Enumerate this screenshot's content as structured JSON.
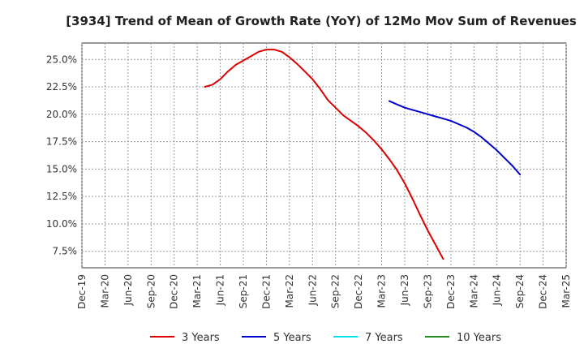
{
  "chart_data": {
    "type": "line",
    "title": "[3934]  Trend of Mean of Growth Rate (YoY) of 12Mo Mov Sum of Revenues",
    "xlabel": "",
    "ylabel": "",
    "ylim": [
      6.0,
      26.5
    ],
    "grid": true,
    "legend": "bottom",
    "x_ticks": [
      "Dec-19",
      "Mar-20",
      "Jun-20",
      "Sep-20",
      "Dec-20",
      "Mar-21",
      "Jun-21",
      "Sep-21",
      "Dec-21",
      "Mar-22",
      "Jun-22",
      "Sep-22",
      "Dec-22",
      "Mar-23",
      "Jun-23",
      "Sep-23",
      "Dec-23",
      "Mar-24",
      "Jun-24",
      "Sep-24",
      "Dec-24",
      "Mar-25"
    ],
    "y_ticks": [
      7.5,
      10.0,
      12.5,
      15.0,
      17.5,
      20.0,
      22.5,
      25.0
    ],
    "y_tick_labels": [
      "7.5%",
      "10.0%",
      "12.5%",
      "15.0%",
      "17.5%",
      "20.0%",
      "22.5%",
      "25.0%"
    ],
    "series": [
      {
        "name": "3 Years",
        "color": "#dd0000",
        "points": [
          [
            16,
            22.5
          ],
          [
            17,
            22.7
          ],
          [
            18,
            23.2
          ],
          [
            19,
            23.9
          ],
          [
            20,
            24.5
          ],
          [
            21,
            24.9
          ],
          [
            22,
            25.3
          ],
          [
            23,
            25.7
          ],
          [
            24,
            25.9
          ],
          [
            25,
            25.9
          ],
          [
            26,
            25.7
          ],
          [
            27,
            25.2
          ],
          [
            28,
            24.6
          ],
          [
            29,
            23.9
          ],
          [
            30,
            23.2
          ],
          [
            31,
            22.3
          ],
          [
            32,
            21.3
          ],
          [
            33,
            20.6
          ],
          [
            34,
            19.9
          ],
          [
            35,
            19.4
          ],
          [
            36,
            18.9
          ],
          [
            37,
            18.3
          ],
          [
            38,
            17.6
          ],
          [
            39,
            16.8
          ],
          [
            40,
            15.9
          ],
          [
            41,
            14.9
          ],
          [
            42,
            13.7
          ],
          [
            43,
            12.3
          ],
          [
            44,
            10.8
          ],
          [
            45,
            9.4
          ],
          [
            46,
            8.1
          ],
          [
            47,
            6.8
          ]
        ]
      },
      {
        "name": "5 Years",
        "color": "#0000cc",
        "points": [
          [
            40,
            21.2
          ],
          [
            41,
            20.9
          ],
          [
            42,
            20.6
          ],
          [
            43,
            20.4
          ],
          [
            44,
            20.2
          ],
          [
            45,
            20.0
          ],
          [
            46,
            19.8
          ],
          [
            47,
            19.6
          ],
          [
            48,
            19.4
          ],
          [
            49,
            19.1
          ],
          [
            50,
            18.8
          ],
          [
            51,
            18.4
          ],
          [
            52,
            17.9
          ],
          [
            53,
            17.3
          ],
          [
            54,
            16.7
          ],
          [
            55,
            16.0
          ],
          [
            56,
            15.3
          ],
          [
            57,
            14.5
          ]
        ]
      },
      {
        "name": "7 Years",
        "color": "#00e5ee",
        "points": []
      },
      {
        "name": "10 Years",
        "color": "#228b22",
        "points": []
      }
    ]
  }
}
